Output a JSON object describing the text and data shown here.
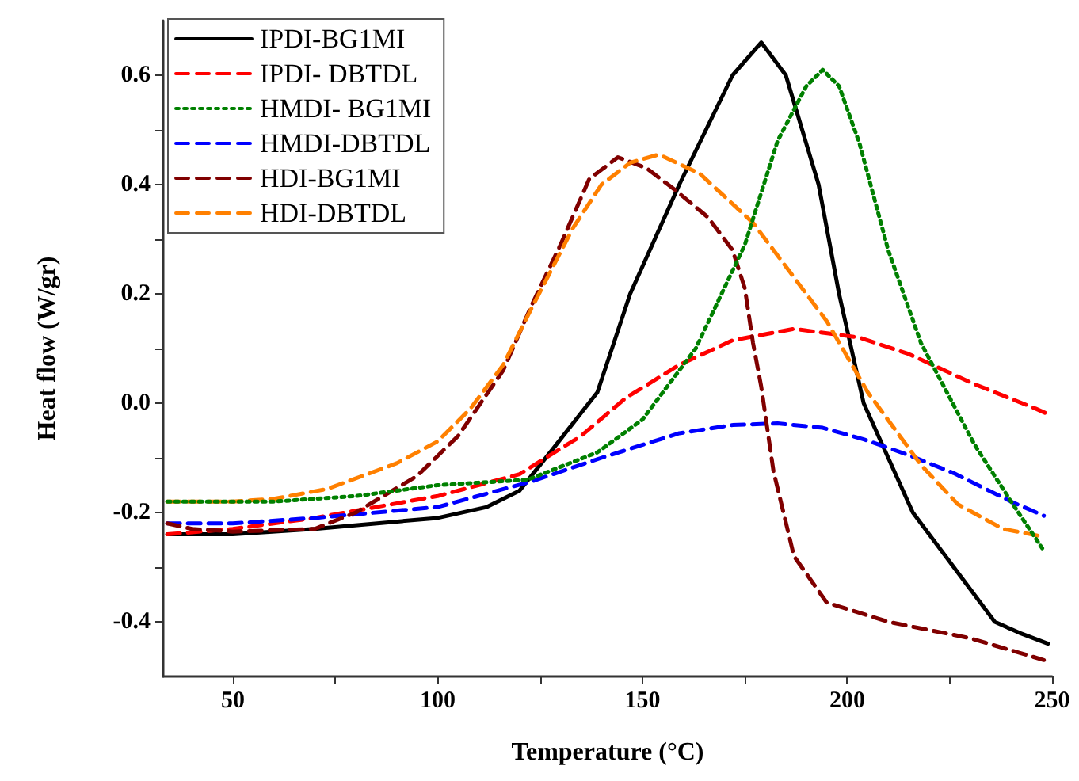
{
  "chart_data": {
    "type": "line",
    "xlabel": "Temperature (°C)",
    "ylabel": "Heat flow (W/gr)",
    "xlim": [
      33,
      250
    ],
    "ylim": [
      -0.5,
      0.7
    ],
    "xticks": [
      50,
      {
        "value": 75,
        "label": null
      },
      100,
      {
        "value": 125,
        "label": null
      },
      150,
      {
        "value": 175,
        "label": null
      },
      200,
      {
        "value": 225,
        "label": null
      },
      250
    ],
    "yticks": [
      {
        "value": -0.4,
        "label": "-0.4"
      },
      {
        "value": -0.3,
        "label": null
      },
      {
        "value": -0.2,
        "label": "-0.2"
      },
      {
        "value": -0.1,
        "label": null
      },
      {
        "value": 0,
        "label": "0.0"
      },
      {
        "value": 0.1,
        "label": null
      },
      {
        "value": 0.2,
        "label": "0.2"
      },
      {
        "value": 0.3,
        "label": null
      },
      {
        "value": 0.4,
        "label": "0.4"
      },
      {
        "value": 0.5,
        "label": null
      },
      {
        "value": 0.6,
        "label": "0.6"
      }
    ],
    "grid": false,
    "legend": "top left",
    "marker": "none",
    "series": [
      {
        "name": "IPDI-BG1MI",
        "color": "#000000",
        "line_style": "solid",
        "x": [
          34,
          50,
          70,
          100,
          112,
          120,
          128,
          139,
          147,
          159,
          172,
          179,
          185,
          193,
          198,
          204,
          216,
          236,
          242,
          249
        ],
        "values": [
          -0.24,
          -0.24,
          -0.23,
          -0.21,
          -0.19,
          -0.16,
          -0.085,
          0.02,
          0.2,
          0.4,
          0.6,
          0.66,
          0.6,
          0.4,
          0.2,
          0.0,
          -0.2,
          -0.4,
          -0.42,
          -0.44
        ]
      },
      {
        "name": "IPDI- DBTDL",
        "color": "#ff0000",
        "line_style": "dashed",
        "x": [
          34,
          50,
          70,
          100,
          120,
          135,
          146,
          159,
          172,
          187,
          203,
          215,
          231,
          246,
          249
        ],
        "values": [
          -0.24,
          -0.23,
          -0.21,
          -0.17,
          -0.13,
          -0.06,
          0.01,
          0.07,
          0.115,
          0.136,
          0.12,
          0.09,
          0.035,
          -0.01,
          -0.02
        ]
      },
      {
        "name": "HMDI- BG1MI",
        "color": "#008000",
        "line_style": "dotted",
        "x": [
          34,
          60,
          80,
          100,
          122,
          139,
          150,
          163,
          175,
          183,
          190,
          194,
          198,
          203,
          210,
          218,
          231,
          240,
          248
        ],
        "values": [
          -0.18,
          -0.18,
          -0.17,
          -0.15,
          -0.14,
          -0.09,
          -0.03,
          0.1,
          0.29,
          0.48,
          0.58,
          0.61,
          0.58,
          0.475,
          0.28,
          0.11,
          -0.075,
          -0.18,
          -0.27
        ]
      },
      {
        "name": "HMDI-DBTDL",
        "color": "#0000ff",
        "line_style": "dashed",
        "x": [
          34,
          50,
          70,
          100,
          123,
          140,
          159,
          172,
          183,
          194,
          204,
          215,
          226,
          240,
          248
        ],
        "values": [
          -0.22,
          -0.22,
          -0.21,
          -0.19,
          -0.143,
          -0.1,
          -0.055,
          -0.04,
          -0.037,
          -0.045,
          -0.066,
          -0.095,
          -0.128,
          -0.18,
          -0.206
        ]
      },
      {
        "name": "HDI-BG1MI",
        "color": "#800000",
        "line_style": "dashed",
        "x": [
          34,
          40,
          50,
          70,
          80,
          95,
          105,
          116,
          123,
          130,
          137,
          144,
          151,
          158,
          166,
          172,
          175,
          177,
          179,
          182,
          187,
          195,
          210,
          230,
          248
        ],
        "values": [
          -0.22,
          -0.23,
          -0.235,
          -0.23,
          -0.2,
          -0.133,
          -0.06,
          0.06,
          0.18,
          0.29,
          0.41,
          0.45,
          0.43,
          0.39,
          0.34,
          0.28,
          0.21,
          0.11,
          0.03,
          -0.125,
          -0.28,
          -0.365,
          -0.4,
          -0.43,
          -0.47
        ]
      },
      {
        "name": "HDI-DBTDL",
        "color": "#ff8000",
        "line_style": "dashed",
        "x": [
          34,
          50,
          60,
          73,
          90,
          100,
          108,
          116,
          122,
          133,
          140,
          147,
          154,
          164,
          177,
          187,
          195,
          205,
          218,
          227,
          238,
          247
        ],
        "values": [
          -0.18,
          -0.18,
          -0.175,
          -0.157,
          -0.11,
          -0.07,
          -0.01,
          0.07,
          0.16,
          0.32,
          0.4,
          0.44,
          0.455,
          0.42,
          0.33,
          0.23,
          0.15,
          0.02,
          -0.113,
          -0.185,
          -0.23,
          -0.243
        ]
      }
    ]
  }
}
